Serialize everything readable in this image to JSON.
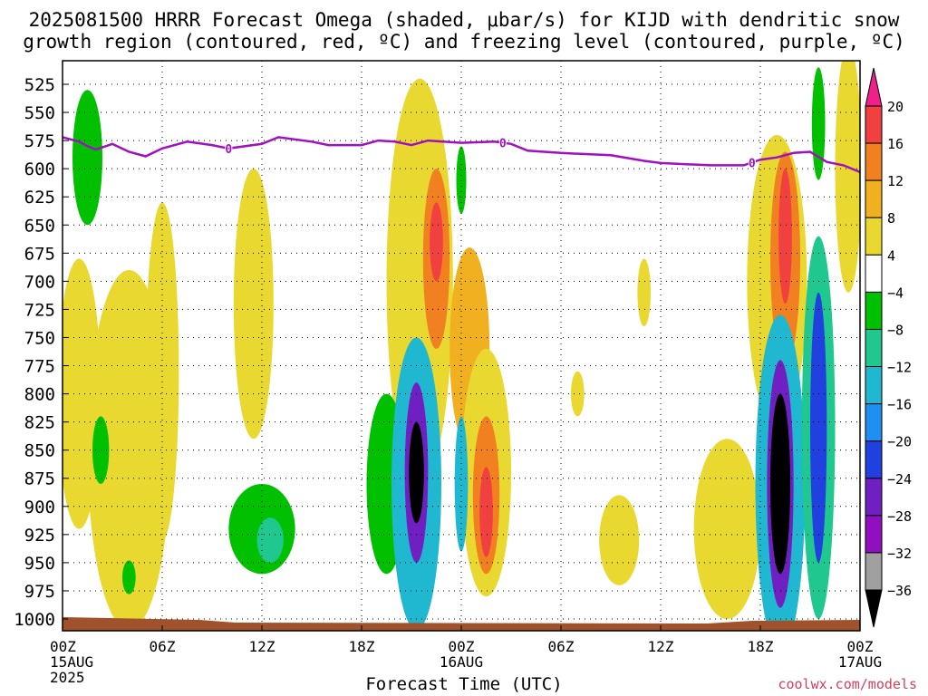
{
  "title_line1": "2025081500 HRRR Forecast Omega (shaded, μbar/s) for KIJD with dendritic snow",
  "title_line2": "growth region (contoured, red, ºC) and freezing level (contoured, purple, ºC)",
  "credit": "coolwx.com/models",
  "chart_data": {
    "type": "heatmap",
    "xlabel": "Forecast Time (UTC)",
    "ylabel": "",
    "xlim_hours": [
      0,
      48
    ],
    "ylim_hpa": [
      1000,
      510
    ],
    "pressure_ticks": [
      "525",
      "550",
      "575",
      "600",
      "625",
      "650",
      "675",
      "700",
      "725",
      "750",
      "775",
      "800",
      "825",
      "850",
      "875",
      "900",
      "925",
      "950",
      "975",
      "1000"
    ],
    "time_ticks": [
      {
        "h": 0,
        "label": "00Z",
        "sub": "15AUG",
        "sub2": "2025"
      },
      {
        "h": 6,
        "label": "06Z",
        "sub": "",
        "sub2": ""
      },
      {
        "h": 12,
        "label": "12Z",
        "sub": "",
        "sub2": ""
      },
      {
        "h": 18,
        "label": "18Z",
        "sub": "",
        "sub2": ""
      },
      {
        "h": 24,
        "label": "00Z",
        "sub": "16AUG",
        "sub2": ""
      },
      {
        "h": 30,
        "label": "06Z",
        "sub": "",
        "sub2": ""
      },
      {
        "h": 36,
        "label": "12Z",
        "sub": "",
        "sub2": ""
      },
      {
        "h": 42,
        "label": "18Z",
        "sub": "",
        "sub2": ""
      },
      {
        "h": 48,
        "label": "00Z",
        "sub": "17AUG",
        "sub2": ""
      }
    ],
    "colorbar": {
      "colors": [
        "#e8d830",
        "#f0b020",
        "#f08020",
        "#f04040",
        "#f0208a",
        "#ffffff",
        "#00c000",
        "#20c890",
        "#20b8d0",
        "#2090f0",
        "#2040e0",
        "#7020c0",
        "#9010c0",
        "#a0a0a0",
        "#000000"
      ],
      "labels_top_to_bottom": [
        "20",
        "16",
        "12",
        "8",
        "4",
        "−4",
        "−8",
        "−12",
        "−16",
        "−20",
        "−24",
        "−28",
        "−32",
        "−36"
      ]
    },
    "freezing_level_hpa": [
      [
        0,
        572
      ],
      [
        1,
        576
      ],
      [
        1.5,
        580
      ],
      [
        2,
        583
      ],
      [
        3,
        578
      ],
      [
        4,
        585
      ],
      [
        5,
        589
      ],
      [
        6,
        582
      ],
      [
        7.5,
        576
      ],
      [
        9,
        579
      ],
      [
        10,
        582
      ],
      [
        12,
        578
      ],
      [
        13,
        572
      ],
      [
        15,
        576
      ],
      [
        16,
        579
      ],
      [
        18,
        579
      ],
      [
        19,
        575
      ],
      [
        20,
        576
      ],
      [
        21,
        579
      ],
      [
        22,
        575
      ],
      [
        24,
        577
      ],
      [
        26,
        576
      ],
      [
        27,
        578
      ],
      [
        28,
        584
      ],
      [
        30,
        586
      ],
      [
        33,
        588
      ],
      [
        35,
        593
      ],
      [
        36,
        595
      ],
      [
        39,
        597
      ],
      [
        41,
        597
      ],
      [
        42,
        592
      ],
      [
        43,
        590
      ],
      [
        44,
        586
      ],
      [
        45,
        585
      ],
      [
        46,
        594
      ],
      [
        47,
        597
      ],
      [
        48,
        603
      ]
    ],
    "freezing_level_label_hours": [
      10,
      26.5,
      41.5
    ],
    "freezing_level_label": "0",
    "omega_features": [
      {
        "t": 1,
        "p": 800,
        "rt": 1.3,
        "rp": 120,
        "v": 5
      },
      {
        "t": 4,
        "p": 850,
        "rt": 2.5,
        "rp": 160,
        "v": 5
      },
      {
        "t": 6,
        "p": 780,
        "rt": 1,
        "rp": 150,
        "v": 5
      },
      {
        "t": 11.5,
        "p": 720,
        "rt": 1.2,
        "rp": 120,
        "v": 5
      },
      {
        "t": 21.5,
        "p": 700,
        "rt": 2,
        "rp": 180,
        "v": 5
      },
      {
        "t": 22.5,
        "p": 680,
        "rt": 0.8,
        "rp": 80,
        "v": 12
      },
      {
        "t": 22.5,
        "p": 665,
        "rt": 0.4,
        "rp": 35,
        "v": 18
      },
      {
        "t": 24.5,
        "p": 760,
        "rt": 1.2,
        "rp": 90,
        "v": 9
      },
      {
        "t": 25.5,
        "p": 870,
        "rt": 1.5,
        "rp": 110,
        "v": 5
      },
      {
        "t": 25.5,
        "p": 890,
        "rt": 0.8,
        "rp": 70,
        "v": 12
      },
      {
        "t": 25.5,
        "p": 905,
        "rt": 0.4,
        "rp": 40,
        "v": 18
      },
      {
        "t": 31,
        "p": 800,
        "rt": 0.4,
        "rp": 20,
        "v": 5
      },
      {
        "t": 33.5,
        "p": 930,
        "rt": 1.2,
        "rp": 40,
        "v": 5
      },
      {
        "t": 35,
        "p": 710,
        "rt": 0.4,
        "rp": 30,
        "v": 5
      },
      {
        "t": 40,
        "p": 920,
        "rt": 2,
        "rp": 80,
        "v": 5
      },
      {
        "t": 43,
        "p": 700,
        "rt": 1.8,
        "rp": 130,
        "v": 5
      },
      {
        "t": 43.5,
        "p": 680,
        "rt": 0.9,
        "rp": 95,
        "v": 12
      },
      {
        "t": 43.5,
        "p": 660,
        "rt": 0.4,
        "rp": 60,
        "v": 18
      },
      {
        "t": 47.3,
        "p": 600,
        "rt": 0.8,
        "rp": 110,
        "v": 5
      },
      {
        "t": 1.5,
        "p": 590,
        "rt": 0.9,
        "rp": 60,
        "v": -6
      },
      {
        "t": 2.3,
        "p": 850,
        "rt": 0.5,
        "rp": 30,
        "v": -6
      },
      {
        "t": 4,
        "p": 963,
        "rt": 0.4,
        "rp": 15,
        "v": -6
      },
      {
        "t": 12,
        "p": 920,
        "rt": 2,
        "rp": 40,
        "v": -6
      },
      {
        "t": 12.5,
        "p": 930,
        "rt": 0.8,
        "rp": 20,
        "v": -10
      },
      {
        "t": 19.5,
        "p": 880,
        "rt": 1.2,
        "rp": 80,
        "v": -6
      },
      {
        "t": 21.3,
        "p": 880,
        "rt": 1.5,
        "rp": 130,
        "v": -14
      },
      {
        "t": 21.3,
        "p": 870,
        "rt": 0.7,
        "rp": 80,
        "v": -26
      },
      {
        "t": 21.3,
        "p": 870,
        "rt": 0.45,
        "rp": 45,
        "v": -38
      },
      {
        "t": 24,
        "p": 610,
        "rt": 0.3,
        "rp": 30,
        "v": -6
      },
      {
        "t": 24,
        "p": 880,
        "rt": 0.4,
        "rp": 60,
        "v": -14
      },
      {
        "t": 45.5,
        "p": 560,
        "rt": 0.4,
        "rp": 50,
        "v": -6
      },
      {
        "t": 43.2,
        "p": 880,
        "rt": 1.5,
        "rp": 150,
        "v": -14
      },
      {
        "t": 43.2,
        "p": 880,
        "rt": 0.8,
        "rp": 110,
        "v": -26
      },
      {
        "t": 43.2,
        "p": 880,
        "rt": 0.6,
        "rp": 80,
        "v": -38
      },
      {
        "t": 45.5,
        "p": 830,
        "rt": 1,
        "rp": 170,
        "v": -10
      },
      {
        "t": 45.5,
        "p": 830,
        "rt": 0.5,
        "rp": 120,
        "v": -22
      }
    ]
  }
}
